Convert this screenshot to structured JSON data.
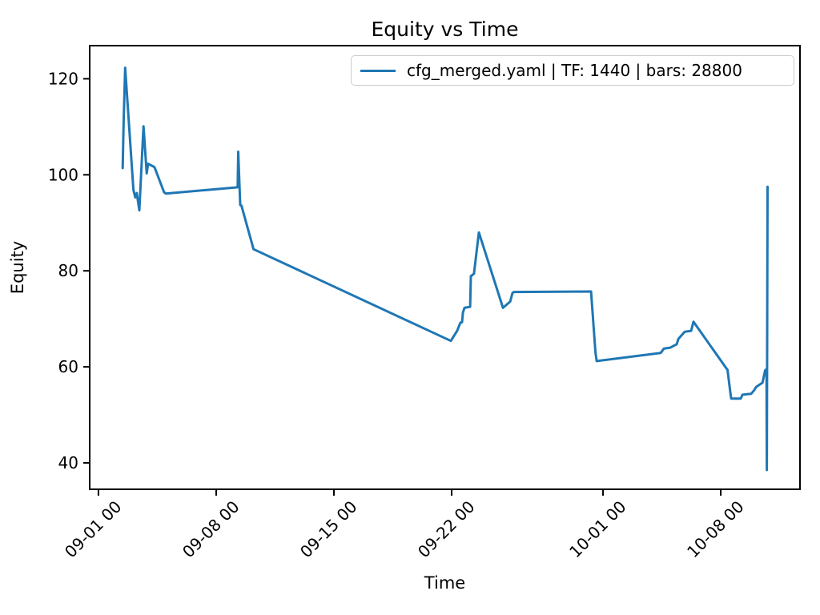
{
  "title": "Equity vs Time",
  "xlabel": "Time",
  "ylabel": "Equity",
  "legend": {
    "label": "cfg_merged.yaml | TF: 1440 | bars: 28800",
    "position": "upper right"
  },
  "colors": {
    "line": "#1f77b4",
    "spine": "#000000",
    "text": "#000000",
    "legend_border": "#cccccc",
    "background": "#ffffff"
  },
  "chart_data": {
    "type": "line",
    "title": "Equity vs Time",
    "xlabel": "Time",
    "ylabel": "Equity",
    "grid": false,
    "legend_position": "upper right",
    "x_unit": "days since 09-01 00:00",
    "xlim": [
      -0.52,
      41.71
    ],
    "ylim": [
      34.5,
      126.9
    ],
    "x_ticks": [
      {
        "value": 0,
        "label": "09-01 00"
      },
      {
        "value": 7,
        "label": "09-08 00"
      },
      {
        "value": 14,
        "label": "09-15 00"
      },
      {
        "value": 21,
        "label": "09-22 00"
      },
      {
        "value": 30,
        "label": "10-01 00"
      },
      {
        "value": 37,
        "label": "10-08 00"
      }
    ],
    "y_ticks": [
      40,
      60,
      80,
      100,
      120
    ],
    "series": [
      {
        "name": "cfg_merged.yaml | TF: 1440 | bars: 28800",
        "color": "#1f77b4",
        "points": [
          [
            1.44,
            101.4
          ],
          [
            1.5,
            111.1
          ],
          [
            1.59,
            122.3
          ],
          [
            2.08,
            96.9
          ],
          [
            2.19,
            95.3
          ],
          [
            2.28,
            96.2
          ],
          [
            2.43,
            92.6
          ],
          [
            2.68,
            110.1
          ],
          [
            2.87,
            100.3
          ],
          [
            2.95,
            102.3
          ],
          [
            3.33,
            101.6
          ],
          [
            3.9,
            96.4
          ],
          [
            4.0,
            96.1
          ],
          [
            8.28,
            97.4
          ],
          [
            8.31,
            104.8
          ],
          [
            8.43,
            93.7
          ],
          [
            8.5,
            93.6
          ],
          [
            8.55,
            93.0
          ],
          [
            9.22,
            84.5
          ],
          [
            20.95,
            65.4
          ],
          [
            21.33,
            67.5
          ],
          [
            21.52,
            69.2
          ],
          [
            21.62,
            69.3
          ],
          [
            21.67,
            71.3
          ],
          [
            21.76,
            72.3
          ],
          [
            22.1,
            72.5
          ],
          [
            22.14,
            78.9
          ],
          [
            22.33,
            79.4
          ],
          [
            22.62,
            88.0
          ],
          [
            24.05,
            72.3
          ],
          [
            24.48,
            73.6
          ],
          [
            24.62,
            75.4
          ],
          [
            24.7,
            75.6
          ],
          [
            29.29,
            75.7
          ],
          [
            29.55,
            63.0
          ],
          [
            29.62,
            61.2
          ],
          [
            33.43,
            62.9
          ],
          [
            33.62,
            63.8
          ],
          [
            34.0,
            64.0
          ],
          [
            34.38,
            64.7
          ],
          [
            34.48,
            65.8
          ],
          [
            34.86,
            67.3
          ],
          [
            35.24,
            67.5
          ],
          [
            35.38,
            69.4
          ],
          [
            37.33,
            59.7
          ],
          [
            37.4,
            59.4
          ],
          [
            37.57,
            54.7
          ],
          [
            37.62,
            53.4
          ],
          [
            38.19,
            53.4
          ],
          [
            38.29,
            54.2
          ],
          [
            38.81,
            54.4
          ],
          [
            39.0,
            55.2
          ],
          [
            39.1,
            55.8
          ],
          [
            39.48,
            56.7
          ],
          [
            39.64,
            59.3
          ],
          [
            39.72,
            59.5
          ],
          [
            39.74,
            38.5
          ],
          [
            39.78,
            97.5
          ]
        ]
      }
    ]
  }
}
